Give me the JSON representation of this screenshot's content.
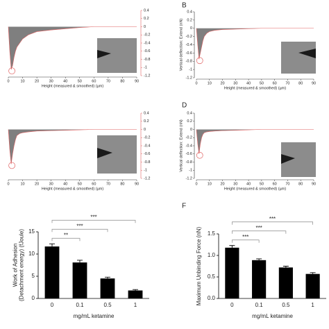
{
  "chart_data": [
    {
      "type": "force_curve",
      "yaxis_side": "right",
      "xlabel": "Height (measured & smoothed) (µm)",
      "xlim": [
        0,
        90
      ],
      "xticks": [
        0,
        10,
        20,
        30,
        40,
        50,
        60,
        70,
        80,
        90
      ],
      "ylim": [
        -1.2,
        0.4
      ],
      "yticks": [
        0.4,
        0.2,
        0,
        -0.2,
        -0.4,
        -0.6,
        -0.8,
        -1.0,
        -1.2
      ],
      "fill_color": "#7f7f7f",
      "line_color": "#e06060",
      "x": [
        0,
        1,
        2,
        3,
        4,
        5,
        6,
        8,
        10,
        14,
        20,
        30,
        40,
        50,
        60,
        90
      ],
      "values": [
        0,
        -0.6,
        -1.05,
        -0.95,
        -0.75,
        -0.6,
        -0.5,
        -0.4,
        -0.3,
        -0.2,
        -0.12,
        -0.08,
        -0.05,
        -0.02,
        0,
        0
      ]
    },
    {
      "type": "force_curve",
      "panel": "B",
      "yaxis_side": "left",
      "ylabel": "Vertical deflection: Extend (nN)",
      "xlabel": "Height (measured & smoothed) (µm)",
      "xlim": [
        0,
        90
      ],
      "xticks": [
        0,
        10,
        20,
        30,
        40,
        50,
        60,
        70,
        80,
        90
      ],
      "ylim": [
        -1.2,
        0.4
      ],
      "yticks": [
        0.4,
        0.2,
        0,
        -0.2,
        -0.4,
        -0.6,
        -0.8,
        -1.0,
        -1.2
      ],
      "fill_color": "#7f7f7f",
      "line_color": "#e06060",
      "x": [
        0,
        1,
        2,
        3,
        4,
        5,
        6,
        8,
        10,
        14,
        20,
        30,
        40,
        50,
        60,
        90
      ],
      "values": [
        0,
        -0.4,
        -0.75,
        -0.6,
        -0.45,
        -0.3,
        -0.2,
        -0.12,
        -0.08,
        -0.05,
        -0.03,
        -0.02,
        -0.01,
        0,
        0,
        0
      ]
    },
    {
      "type": "force_curve",
      "yaxis_side": "right",
      "xlabel": "Height (measured & smoothed) (µm)",
      "xlim": [
        0,
        90
      ],
      "xticks": [
        0,
        10,
        20,
        30,
        40,
        50,
        60,
        70,
        80,
        90
      ],
      "ylim": [
        -1.2,
        0.4
      ],
      "yticks": [
        0.4,
        0.2,
        0,
        -0.2,
        -0.4,
        -0.6,
        -0.8,
        -1.0,
        -1.2
      ],
      "fill_color": "#7f7f7f",
      "line_color": "#e06060",
      "x": [
        0,
        1,
        2,
        3,
        4,
        5,
        6,
        8,
        10,
        14,
        20,
        30,
        40,
        50,
        60,
        90
      ],
      "values": [
        0,
        -0.5,
        -0.85,
        -0.6,
        -0.4,
        -0.25,
        -0.15,
        -0.1,
        -0.08,
        -0.06,
        -0.04,
        -0.03,
        -0.02,
        -0.01,
        0,
        0
      ]
    },
    {
      "type": "force_curve",
      "panel": "D",
      "yaxis_side": "left",
      "ylabel": "Vertical deflection: Extend (nN)",
      "xlabel": "Height (measured & smoothed) (µm)",
      "xlim": [
        0,
        90
      ],
      "xticks": [
        0,
        10,
        20,
        30,
        40,
        50,
        60,
        70,
        80,
        90
      ],
      "ylim": [
        -1.2,
        0.4
      ],
      "yticks": [
        0.4,
        0.2,
        0,
        -0.2,
        -0.4,
        -0.6,
        -0.8,
        -1.0,
        -1.2
      ],
      "fill_color": "#7f7f7f",
      "line_color": "#e06060",
      "x": [
        0,
        1,
        2,
        3,
        4,
        5,
        6,
        8,
        10,
        14,
        20,
        30,
        40,
        50,
        60,
        90
      ],
      "values": [
        0,
        -0.35,
        -0.6,
        -0.35,
        -0.2,
        -0.12,
        -0.08,
        -0.06,
        -0.05,
        -0.04,
        -0.03,
        -0.02,
        -0.01,
        0,
        0,
        0
      ]
    },
    {
      "type": "bar",
      "ylabel": [
        "Work of Adhesion",
        "(Detachment energy)  (fJoule)"
      ],
      "xlabel": "mg/mL ketamine",
      "categories": [
        "0",
        "0.1",
        "0.5",
        "1"
      ],
      "values": [
        11.7,
        8.1,
        4.5,
        1.8
      ],
      "errors": [
        0.6,
        0.5,
        0.3,
        0.2
      ],
      "color": "#000000",
      "ylim": [
        0,
        15
      ],
      "yticks": [
        0,
        5,
        10,
        15
      ],
      "significance": [
        "**",
        "***",
        "***"
      ]
    },
    {
      "type": "bar",
      "panel": "F",
      "ylabel": [
        "Maximum Unbinding Force (nN)"
      ],
      "xlabel": "mg/mL ketamine",
      "categories": [
        "0",
        "0.1",
        "0.5",
        "1"
      ],
      "values": [
        1.18,
        0.89,
        0.72,
        0.57
      ],
      "errors": [
        0.05,
        0.03,
        0.03,
        0.03
      ],
      "color": "#000000",
      "ylim": [
        0,
        1.5
      ],
      "yticks": [
        {
          "value": 0,
          "label": "0.0"
        },
        {
          "value": 0.5,
          "label": "0.5"
        },
        {
          "value": 1,
          "label": "1.0"
        },
        {
          "value": 1.5,
          "label": "1.5"
        }
      ],
      "significance": [
        "***",
        "***",
        "***"
      ]
    }
  ]
}
